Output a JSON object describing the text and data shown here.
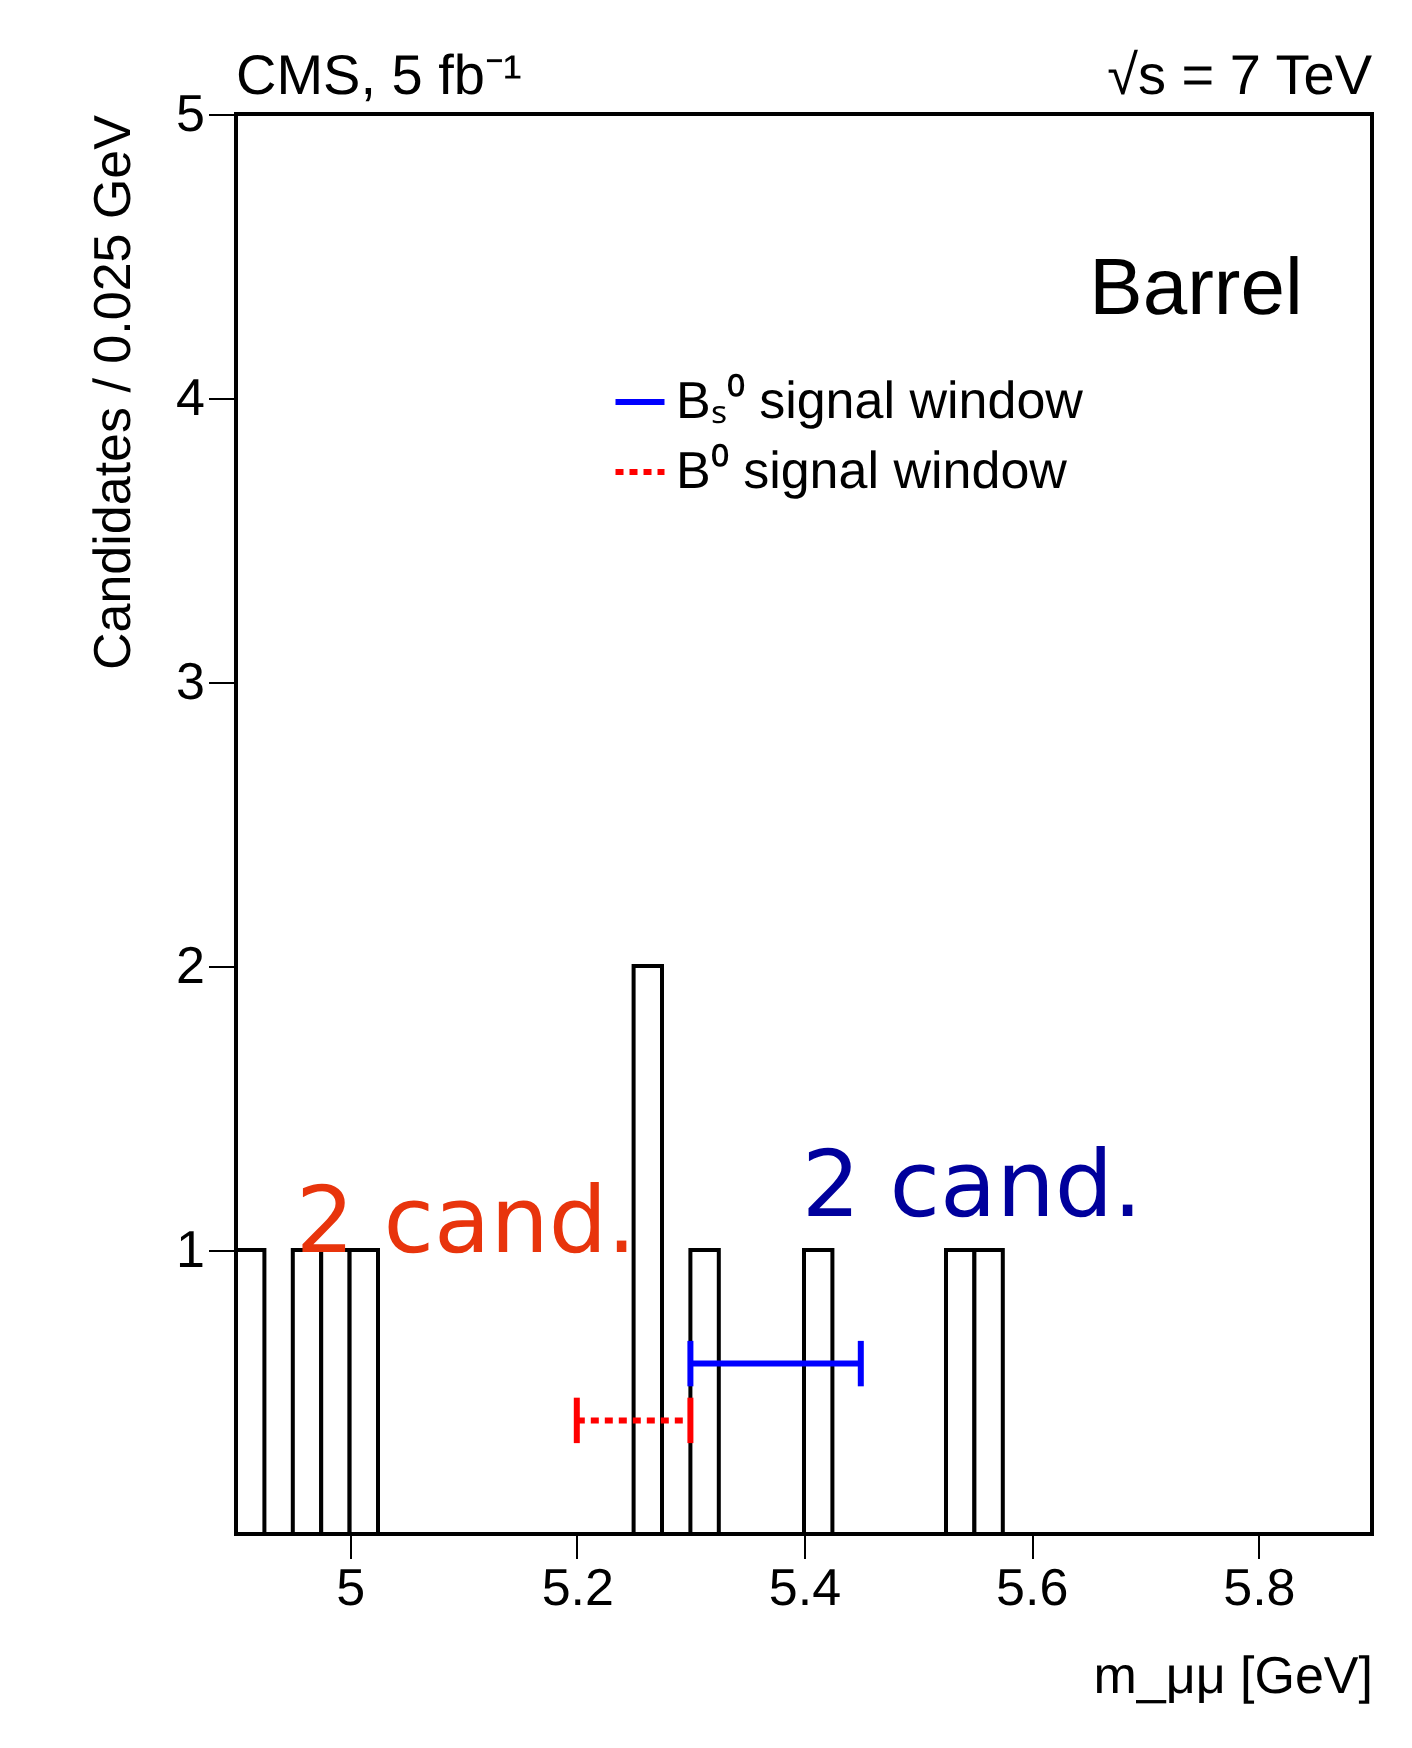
{
  "chart_data": {
    "type": "histogram",
    "title": "CMS, 5 fb⁻¹",
    "subtitle": "√s = 7 TeV",
    "xlabel": "m_μμ [GeV]",
    "ylabel": "Candidates / 0.025 GeV",
    "bins": [
      4.9,
      4.925,
      4.95,
      4.975,
      5.0,
      5.025,
      5.05,
      5.075,
      5.1,
      5.125,
      5.15,
      5.175,
      5.2,
      5.225,
      5.25,
      5.275,
      5.3,
      5.325,
      5.35,
      5.375,
      5.4,
      5.425,
      5.45,
      5.475,
      5.5,
      5.525,
      5.55,
      5.575,
      5.6,
      5.625,
      5.65,
      5.675,
      5.7,
      5.725,
      5.75,
      5.775,
      5.8,
      5.825,
      5.85,
      5.875,
      5.9
    ],
    "values": [
      1,
      0,
      1,
      1,
      1,
      0,
      0,
      0,
      0,
      0,
      0,
      0,
      0,
      0,
      2,
      0,
      1,
      0,
      0,
      0,
      1,
      0,
      0,
      0,
      0,
      1,
      1,
      0,
      0,
      0,
      0,
      0,
      0,
      0,
      0,
      0,
      0,
      0,
      0,
      0
    ],
    "color": "#000000",
    "series": [
      {
        "type": "line",
        "name": "Bₛ⁰ signal window",
        "color": "#0000ff",
        "line_style": "solid",
        "x": [
          5.3,
          5.45
        ],
        "values": [
          0.6,
          0.6
        ],
        "errors": [
          0.08,
          0.08
        ]
      },
      {
        "type": "line",
        "name": "B⁰ signal window",
        "color": "#ff0000",
        "line_style": "dotted",
        "x": [
          5.2,
          5.3
        ],
        "values": [
          0.4,
          0.4
        ],
        "errors": [
          0.08,
          0.08
        ]
      }
    ],
    "annotations": [
      "Barrel",
      "2 cand.",
      "2 cand."
    ],
    "xlim": [
      4.9,
      5.9
    ],
    "xticks": [
      5,
      5.2,
      5.4,
      5.6,
      5.8
    ],
    "ylim": [
      0,
      5
    ],
    "yticks": [
      1,
      2,
      3,
      4,
      5
    ],
    "legend": "top right",
    "grid": false
  }
}
